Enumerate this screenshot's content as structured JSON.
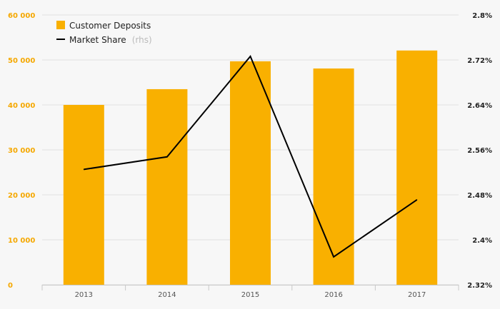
{
  "chart_data": {
    "type": "bar",
    "categories": [
      "2013",
      "2014",
      "2015",
      "2016",
      "2017"
    ],
    "series": [
      {
        "name": "Customer Deposits",
        "type": "bar",
        "axis": "left",
        "color": "#f9b000",
        "values": [
          40000,
          43500,
          49700,
          48100,
          52100
        ]
      },
      {
        "name": "Market Share",
        "type": "line",
        "axis": "right",
        "color": "#000000",
        "values": [
          2.5252,
          2.5476,
          2.7264,
          2.3696,
          2.4712
        ]
      }
    ],
    "legend": {
      "position": "top-left",
      "items": [
        {
          "label": "Customer Deposits",
          "note": ""
        },
        {
          "label": "Market Share",
          "note": "(rhs)"
        }
      ]
    },
    "left_axis": {
      "ylim": [
        0,
        60000
      ],
      "ticks": [
        0,
        10000,
        20000,
        30000,
        40000,
        50000,
        60000
      ],
      "tick_labels": [
        "0",
        "10 000",
        "20 000",
        "30 000",
        "40 000",
        "50 000",
        "60 000"
      ],
      "color": "#f5a800"
    },
    "right_axis": {
      "ylim": [
        2.32,
        2.8
      ],
      "ticks": [
        2.32,
        2.4,
        2.48,
        2.56,
        2.64,
        2.72,
        2.8
      ],
      "tick_labels": [
        "2.32%",
        "2.4%",
        "2.48%",
        "2.56%",
        "2.64%",
        "2.72%",
        "2.8%"
      ],
      "color": "#222222"
    },
    "grid": true
  }
}
